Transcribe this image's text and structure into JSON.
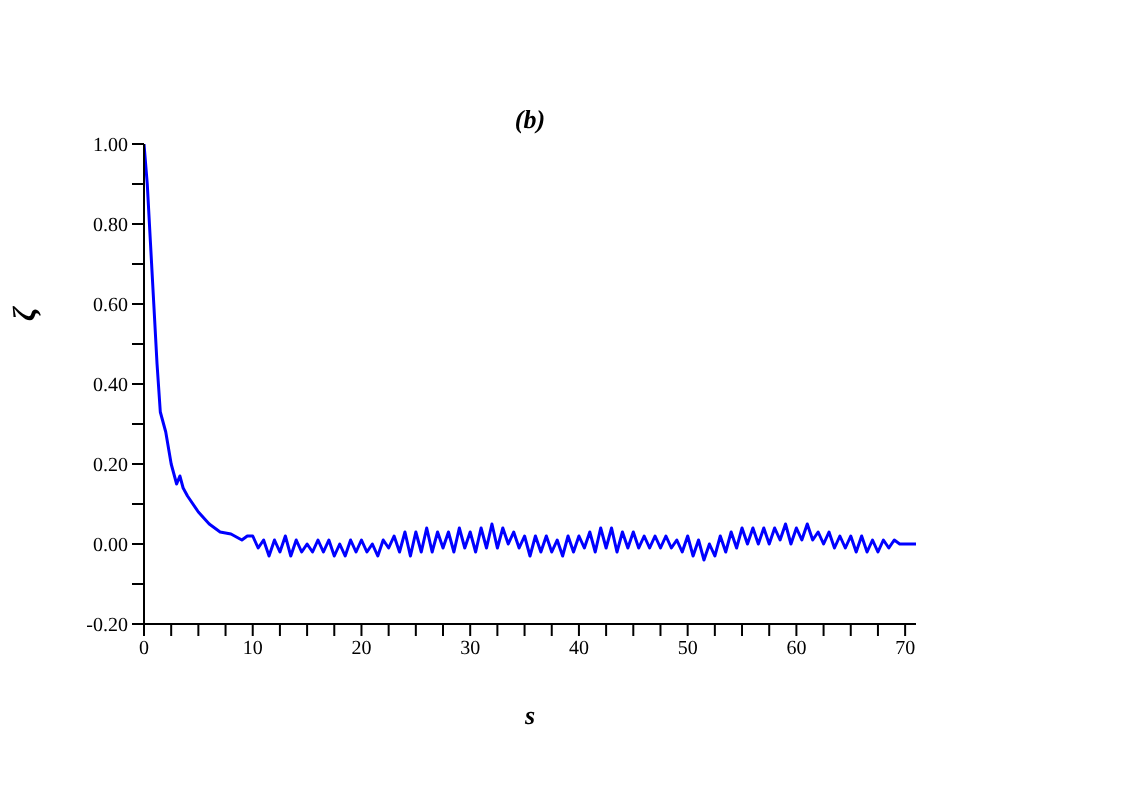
{
  "chart_data": {
    "type": "line",
    "title": "(b)",
    "xlabel": "s",
    "ylabel": "ζ",
    "xlim": [
      0,
      71
    ],
    "xticks": [
      0,
      {
        "value": 2.5,
        "label": null
      },
      {
        "value": 5,
        "label": null
      },
      {
        "value": 7.5,
        "label": null
      },
      10,
      {
        "value": 12.5,
        "label": null
      },
      {
        "value": 15,
        "label": null
      },
      {
        "value": 17.5,
        "label": null
      },
      20,
      {
        "value": 22.5,
        "label": null
      },
      {
        "value": 25,
        "label": null
      },
      {
        "value": 27.5,
        "label": null
      },
      30,
      {
        "value": 32.5,
        "label": null
      },
      {
        "value": 35,
        "label": null
      },
      {
        "value": 37.5,
        "label": null
      },
      40,
      {
        "value": 42.5,
        "label": null
      },
      {
        "value": 45,
        "label": null
      },
      {
        "value": 47.5,
        "label": null
      },
      50,
      {
        "value": 52.5,
        "label": null
      },
      {
        "value": 55,
        "label": null
      },
      {
        "value": 57.5,
        "label": null
      },
      60,
      {
        "value": 62.5,
        "label": null
      },
      {
        "value": 65,
        "label": null
      },
      {
        "value": 67.5,
        "label": null
      },
      70
    ],
    "ylim": [
      -0.2,
      1.0
    ],
    "yticks": [
      {
        "value": -0.2,
        "label": "-0.20"
      },
      {
        "value": -0.1,
        "label": null
      },
      {
        "value": 0,
        "label": "0.00"
      },
      {
        "value": 0.1,
        "label": null
      },
      {
        "value": 0.2,
        "label": "0.20"
      },
      {
        "value": 0.3,
        "label": null
      },
      {
        "value": 0.4,
        "label": "0.40"
      },
      {
        "value": 0.5,
        "label": null
      },
      {
        "value": 0.6,
        "label": "0.60"
      },
      {
        "value": 0.7,
        "label": null
      },
      {
        "value": 0.8,
        "label": "0.80"
      },
      {
        "value": 0.9,
        "label": null
      },
      {
        "value": 1.0,
        "label": "1.00"
      }
    ],
    "grid": false,
    "legend": false,
    "marker": "none",
    "line_style": "solid",
    "series": [
      {
        "color": "#0000ff",
        "x": [
          0,
          0.3,
          0.6,
          0.9,
          1.2,
          1.5,
          2,
          2.5,
          3,
          3.3,
          3.6,
          4,
          5,
          6,
          7,
          8,
          9,
          9.5,
          10,
          10.5,
          11,
          11.5,
          12,
          12.5,
          13,
          13.5,
          14,
          14.5,
          15,
          15.5,
          16,
          16.5,
          17,
          17.5,
          18,
          18.5,
          19,
          19.5,
          20,
          20.5,
          21,
          21.5,
          22,
          22.5,
          23,
          23.5,
          24,
          24.5,
          25,
          25.5,
          26,
          26.5,
          27,
          27.5,
          28,
          28.5,
          29,
          29.5,
          30,
          30.5,
          31,
          31.5,
          32,
          32.5,
          33,
          33.5,
          34,
          34.5,
          35,
          35.5,
          36,
          36.5,
          37,
          37.5,
          38,
          38.5,
          39,
          39.5,
          40,
          40.5,
          41,
          41.5,
          42,
          42.5,
          43,
          43.5,
          44,
          44.5,
          45,
          45.5,
          46,
          46.5,
          47,
          47.5,
          48,
          48.5,
          49,
          49.5,
          50,
          50.5,
          51,
          51.5,
          52,
          52.5,
          53,
          53.5,
          54,
          54.5,
          55,
          55.5,
          56,
          56.5,
          57,
          57.5,
          58,
          58.5,
          59,
          59.5,
          60,
          60.5,
          61,
          61.5,
          62,
          62.5,
          63,
          63.5,
          64,
          64.5,
          65,
          65.5,
          66,
          66.5,
          67,
          67.5,
          68,
          68.5,
          69,
          69.5,
          70,
          71
        ],
        "values": [
          1.0,
          0.9,
          0.75,
          0.6,
          0.45,
          0.33,
          0.28,
          0.2,
          0.15,
          0.17,
          0.14,
          0.12,
          0.08,
          0.05,
          0.03,
          0.025,
          0.01,
          0.02,
          0.02,
          -0.01,
          0.01,
          -0.03,
          0.01,
          -0.02,
          0.02,
          -0.03,
          0.01,
          -0.02,
          0.0,
          -0.02,
          0.01,
          -0.02,
          0.01,
          -0.03,
          0.0,
          -0.03,
          0.01,
          -0.02,
          0.01,
          -0.02,
          0.0,
          -0.03,
          0.01,
          -0.01,
          0.02,
          -0.02,
          0.03,
          -0.03,
          0.03,
          -0.02,
          0.04,
          -0.02,
          0.03,
          -0.01,
          0.03,
          -0.02,
          0.04,
          -0.01,
          0.03,
          -0.02,
          0.04,
          -0.01,
          0.05,
          -0.01,
          0.04,
          0.0,
          0.03,
          -0.01,
          0.02,
          -0.03,
          0.02,
          -0.02,
          0.02,
          -0.02,
          0.01,
          -0.03,
          0.02,
          -0.02,
          0.02,
          -0.01,
          0.03,
          -0.02,
          0.04,
          -0.01,
          0.04,
          -0.02,
          0.03,
          -0.01,
          0.03,
          -0.01,
          0.02,
          -0.01,
          0.02,
          -0.01,
          0.02,
          -0.01,
          0.01,
          -0.02,
          0.02,
          -0.03,
          0.01,
          -0.04,
          0.0,
          -0.03,
          0.02,
          -0.02,
          0.03,
          -0.01,
          0.04,
          0.0,
          0.04,
          0.0,
          0.04,
          0.0,
          0.04,
          0.01,
          0.05,
          0.0,
          0.04,
          0.01,
          0.05,
          0.01,
          0.03,
          0.0,
          0.03,
          -0.01,
          0.02,
          -0.01,
          0.02,
          -0.02,
          0.02,
          -0.02,
          0.01,
          -0.02,
          0.01,
          -0.01,
          0.01,
          0.0,
          0.0,
          0.0
        ]
      }
    ]
  }
}
